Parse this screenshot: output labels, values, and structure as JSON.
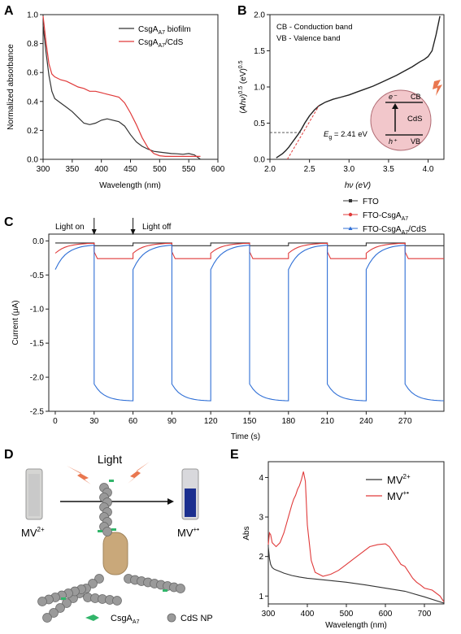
{
  "panels": {
    "a": {
      "letter": "A"
    },
    "b": {
      "letter": "B"
    },
    "c": {
      "letter": "C"
    },
    "d": {
      "letter": "D"
    },
    "e": {
      "letter": "E"
    }
  },
  "colors": {
    "black": "#333333",
    "red": "#e03a3a",
    "blue": "#2f6fd6",
    "grey": "#555555",
    "cds_bg": "#f2c7cb",
    "tube_blue": "#1b2f8f",
    "tube_clear": "#c9c9c9",
    "protein_green": "#32b56a",
    "beam_orange": "#e9774f",
    "capsule": "#c9a87a"
  },
  "chart_data": [
    {
      "panel": "A",
      "type": "line",
      "title": "",
      "xlabel": "Wavelength (nm)",
      "ylabel": "Normalized absorbance",
      "xlim": [
        300,
        600
      ],
      "ylim": [
        0,
        1.0
      ],
      "xticks": [
        "300",
        "350",
        "400",
        "450",
        "500",
        "550",
        "600"
      ],
      "yticks": [
        "0.0",
        "0.2",
        "0.4",
        "0.6",
        "0.8",
        "1.0"
      ],
      "legend_position": "top-right",
      "series": [
        {
          "name": "CsgA_A7 biofilm",
          "color": "#333333",
          "x": [
            300,
            305,
            310,
            315,
            320,
            330,
            340,
            350,
            360,
            370,
            380,
            390,
            400,
            410,
            420,
            430,
            440,
            450,
            460,
            470,
            480,
            490,
            500,
            510,
            520,
            530,
            540,
            550,
            560,
            570
          ],
          "y": [
            0.93,
            0.74,
            0.58,
            0.47,
            0.42,
            0.39,
            0.36,
            0.33,
            0.29,
            0.25,
            0.24,
            0.25,
            0.27,
            0.28,
            0.27,
            0.26,
            0.23,
            0.17,
            0.12,
            0.09,
            0.07,
            0.055,
            0.05,
            0.045,
            0.04,
            0.038,
            0.035,
            0.04,
            0.03,
            0.0
          ]
        },
        {
          "name": "CsgA_A7/CdS",
          "color": "#e03a3a",
          "x": [
            300,
            305,
            310,
            315,
            320,
            330,
            340,
            350,
            360,
            370,
            380,
            390,
            400,
            410,
            420,
            430,
            440,
            450,
            460,
            470,
            480,
            490,
            500,
            510,
            520,
            530,
            540,
            550,
            560,
            570
          ],
          "y": [
            0.99,
            0.81,
            0.66,
            0.59,
            0.57,
            0.55,
            0.54,
            0.52,
            0.5,
            0.49,
            0.47,
            0.47,
            0.46,
            0.45,
            0.44,
            0.43,
            0.39,
            0.32,
            0.24,
            0.15,
            0.08,
            0.04,
            0.025,
            0.02,
            0.02,
            0.02,
            0.02,
            0.02,
            0.02,
            0.02
          ]
        }
      ],
      "legend": [
        "CsgA",
        "A7",
        " biofilm",
        "CsgA",
        "A7",
        "/CdS"
      ]
    },
    {
      "panel": "B",
      "type": "line",
      "title": "",
      "xlabel": "hv (eV)",
      "ylabel": "(Ahv)^0.5 (eV)^0.5",
      "xlim": [
        2.0,
        4.2
      ],
      "ylim": [
        0,
        2.0
      ],
      "xticks": [
        "2.0",
        "2.5",
        "3.0",
        "3.5",
        "4.0"
      ],
      "yticks": [
        "0.0",
        "0.5",
        "1.0",
        "1.5",
        "2.0"
      ],
      "annotations": {
        "cb": "CB - Conduction band",
        "vb": "VB - Valence band",
        "eg_sym": "E",
        "eg_sub": "g",
        "eg_val": " = 2.41 eV"
      },
      "series": [
        {
          "name": "",
          "color": "#222222",
          "x": [
            2.08,
            2.12,
            2.16,
            2.2,
            2.24,
            2.28,
            2.32,
            2.36,
            2.4,
            2.44,
            2.5,
            2.56,
            2.62,
            2.7,
            2.8,
            2.9,
            3.0,
            3.1,
            3.2,
            3.3,
            3.4,
            3.5,
            3.6,
            3.7,
            3.8,
            3.9,
            3.95,
            4.0,
            4.05,
            4.1,
            4.15
          ],
          "y": [
            0.02,
            0.05,
            0.08,
            0.12,
            0.17,
            0.23,
            0.29,
            0.35,
            0.42,
            0.5,
            0.6,
            0.68,
            0.74,
            0.79,
            0.83,
            0.86,
            0.89,
            0.93,
            0.97,
            1.01,
            1.06,
            1.11,
            1.16,
            1.22,
            1.28,
            1.35,
            1.38,
            1.42,
            1.5,
            1.72,
            1.98
          ]
        }
      ],
      "fit_line": {
        "x": [
          2.22,
          2.62
        ],
        "y": [
          0.0,
          0.74
        ],
        "color": "#e03a3a"
      },
      "eg_guide": {
        "x": 2.41,
        "y": 0.37
      }
    },
    {
      "panel": "C",
      "type": "line",
      "title": "",
      "xlabel": "Time (s)",
      "ylabel": "Current (μA)",
      "xlim": [
        -5,
        300
      ],
      "ylim": [
        -2.5,
        0.1
      ],
      "xticks": [
        "0",
        "30",
        "60",
        "90",
        "120",
        "150",
        "180",
        "210",
        "240",
        "270"
      ],
      "yticks": [
        "0.0",
        "-0.5",
        "-1.0",
        "-1.5",
        "-2.0",
        "-2.5"
      ],
      "light_on": "Light on",
      "light_off": "Light off",
      "light_on_t": 30,
      "light_off_t": 60,
      "cycle_s": 60,
      "series": [
        {
          "name": "FTO",
          "color": "#333333",
          "dark": -0.03,
          "light": -0.07
        },
        {
          "name": "FTO-CsgA_A7",
          "color": "#e03a3a",
          "dark_start": -0.18,
          "dark_end": -0.03,
          "light": -0.26
        },
        {
          "name": "FTO-CsgA_A7/CdS",
          "color": "#2f6fd6",
          "dark_start": -0.42,
          "dark_end": -0.05,
          "light_start": -2.1,
          "light_end": -2.35
        }
      ],
      "legend": [
        "FTO",
        "FTO-CsgA",
        "A7",
        "FTO-CsgA",
        "A7",
        "/CdS"
      ]
    },
    {
      "panel": "E",
      "type": "line",
      "title": "",
      "xlabel": "Wavelength (nm)",
      "ylabel": "Abs",
      "xlim": [
        300,
        750
      ],
      "ylim": [
        0.8,
        4.4
      ],
      "xticks": [
        "300",
        "400",
        "500",
        "600",
        "700"
      ],
      "yticks": [
        "1",
        "2",
        "3",
        "4"
      ],
      "series": [
        {
          "name": "MV2+",
          "color": "#333333",
          "x": [
            300,
            303,
            306,
            310,
            315,
            320,
            330,
            340,
            360,
            380,
            400,
            450,
            500,
            550,
            600,
            650,
            700,
            750
          ],
          "y": [
            2.25,
            1.95,
            1.8,
            1.72,
            1.68,
            1.66,
            1.62,
            1.58,
            1.52,
            1.48,
            1.45,
            1.4,
            1.35,
            1.28,
            1.2,
            1.12,
            0.98,
            0.82
          ]
        },
        {
          "name": "MV+•",
          "color": "#e03a3a",
          "x": [
            300,
            303,
            306,
            310,
            315,
            320,
            330,
            340,
            350,
            360,
            365,
            370,
            375,
            380,
            385,
            390,
            395,
            400,
            410,
            420,
            440,
            460,
            480,
            500,
            520,
            540,
            560,
            580,
            600,
            610,
            620,
            630,
            640,
            650,
            660,
            670,
            680,
            690,
            700,
            720,
            740,
            750
          ],
          "y": [
            2.3,
            2.6,
            2.55,
            2.35,
            2.3,
            2.25,
            2.35,
            2.6,
            2.95,
            3.3,
            3.45,
            3.55,
            3.7,
            3.8,
            3.95,
            4.15,
            3.9,
            2.8,
            1.9,
            1.6,
            1.5,
            1.55,
            1.65,
            1.8,
            1.95,
            2.1,
            2.25,
            2.3,
            2.32,
            2.25,
            2.1,
            1.95,
            1.8,
            1.75,
            1.6,
            1.45,
            1.35,
            1.28,
            1.2,
            1.15,
            1.0,
            0.85
          ]
        }
      ],
      "legend": [
        "MV",
        "2+",
        "MV",
        "+•"
      ]
    }
  ],
  "diagram_d": {
    "light_label": "Light",
    "mv2_label": "MV",
    "mv2_sup": "2+",
    "mv_label": "MV",
    "mv_sup": "+•",
    "csga_label": "CsgA",
    "csga_sub": "A7",
    "cds_label": "CdS NP"
  },
  "inset_b": {
    "cb": "CB",
    "cds": "CdS",
    "vb": "VB",
    "e": "e⁻",
    "h": "h⁺"
  }
}
